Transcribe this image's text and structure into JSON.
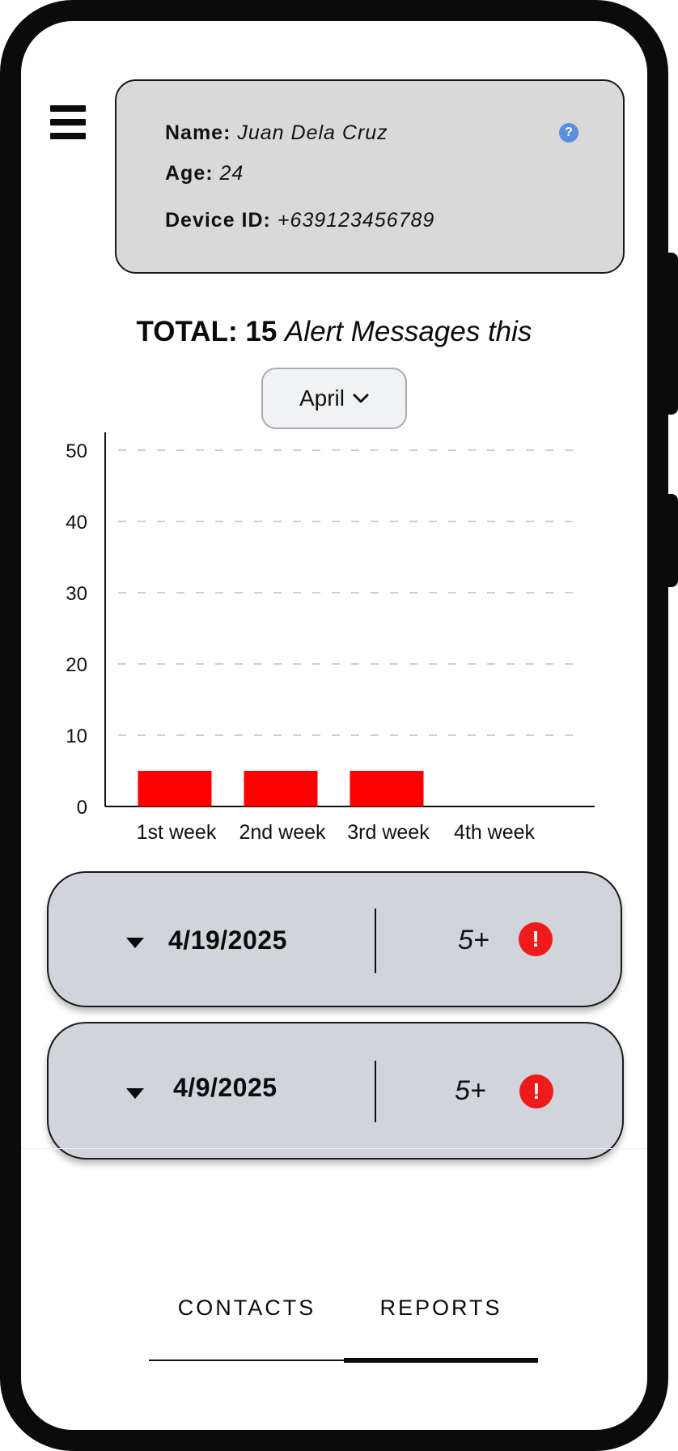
{
  "profile": {
    "name_label": "Name:",
    "name_value": "Juan Dela Cruz",
    "age_label": "Age:",
    "age_value": "24",
    "device_label": "Device ID:",
    "device_value": "+639123456789",
    "help_glyph": "?"
  },
  "summary": {
    "total_label": "TOTAL:",
    "total_value": "15",
    "total_suffix": "Alert Messages this"
  },
  "month_select": {
    "selected": "April"
  },
  "chart_data": {
    "type": "bar",
    "categories": [
      "1st week",
      "2nd week",
      "3rd week",
      "4th week"
    ],
    "values": [
      5,
      5,
      5,
      0
    ],
    "ylim": [
      0,
      50
    ],
    "yticks": [
      0,
      10,
      20,
      30,
      40,
      50
    ],
    "grid": true,
    "bar_color": "#ff0000",
    "title": "",
    "xlabel": "",
    "ylabel": ""
  },
  "reports": [
    {
      "date": "4/19/2025",
      "count": "5+"
    },
    {
      "date": "4/9/2025",
      "count": "5+"
    }
  ],
  "alert_glyph": "!",
  "tabs": {
    "contacts": "CONTACTS",
    "reports": "REPORTS",
    "active": "reports"
  },
  "colors": {
    "alert_red": "#ef1b1b",
    "card_gray": "#d9d9d9",
    "row_gray": "#d1d5db",
    "help_blue": "#5b8de0"
  }
}
